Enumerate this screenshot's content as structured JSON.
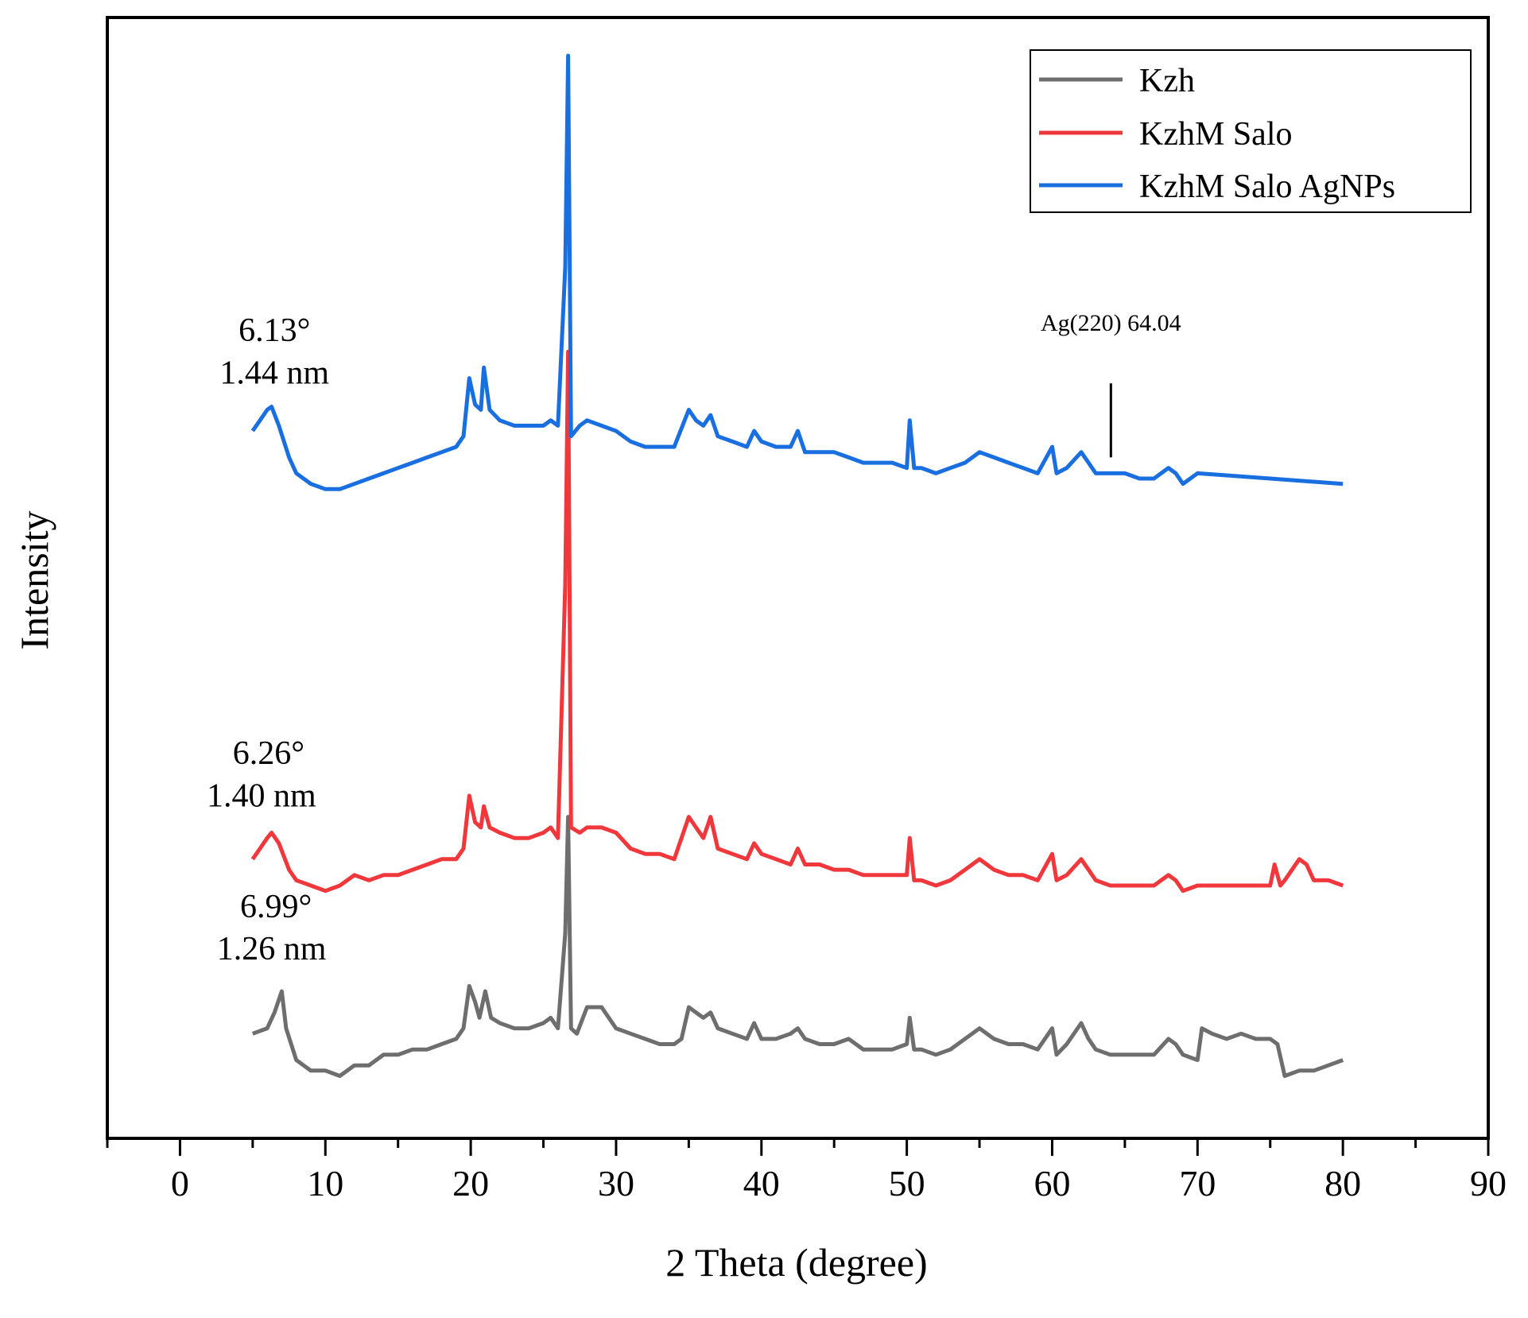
{
  "chart_data": {
    "type": "line",
    "title": "",
    "xlabel": "2 Theta (degree)",
    "ylabel": "Intensity",
    "xlim": [
      -5,
      90
    ],
    "ylim": [
      0,
      100
    ],
    "xticks": [
      0,
      10,
      20,
      30,
      40,
      50,
      60,
      70,
      80,
      90
    ],
    "xtick_labels": [
      "0",
      "10",
      "20",
      "30",
      "40",
      "50",
      "60",
      "70",
      "80",
      "90"
    ],
    "grid": false,
    "legend_position": "top-right",
    "series": [
      {
        "name": "Kzh",
        "color": "#6e6e6e",
        "points": [
          [
            5,
            7.5
          ],
          [
            6,
            8
          ],
          [
            6.5,
            9.5
          ],
          [
            7,
            11.5
          ],
          [
            7.3,
            8
          ],
          [
            8,
            5
          ],
          [
            9,
            4
          ],
          [
            10,
            4
          ],
          [
            11,
            3.5
          ],
          [
            12,
            4.5
          ],
          [
            13,
            4.5
          ],
          [
            14,
            5.5
          ],
          [
            15,
            5.5
          ],
          [
            16,
            6
          ],
          [
            17,
            6
          ],
          [
            18,
            6.5
          ],
          [
            19,
            7
          ],
          [
            19.5,
            8
          ],
          [
            19.9,
            12
          ],
          [
            20.3,
            10.5
          ],
          [
            20.6,
            9
          ],
          [
            21,
            11.5
          ],
          [
            21.4,
            9
          ],
          [
            22,
            8.5
          ],
          [
            23,
            8
          ],
          [
            24,
            8
          ],
          [
            25,
            8.5
          ],
          [
            25.5,
            9
          ],
          [
            26,
            8
          ],
          [
            26.5,
            17
          ],
          [
            26.7,
            28
          ],
          [
            26.9,
            8
          ],
          [
            27.3,
            7.5
          ],
          [
            28,
            10
          ],
          [
            29,
            10
          ],
          [
            29.5,
            9
          ],
          [
            30,
            8
          ],
          [
            31,
            7.5
          ],
          [
            32,
            7
          ],
          [
            33,
            6.5
          ],
          [
            34,
            6.5
          ],
          [
            34.5,
            7
          ],
          [
            35,
            10
          ],
          [
            35.5,
            9.5
          ],
          [
            36,
            9
          ],
          [
            36.5,
            9.5
          ],
          [
            37,
            8
          ],
          [
            38,
            7.5
          ],
          [
            39,
            7
          ],
          [
            39.5,
            8.5
          ],
          [
            40,
            7
          ],
          [
            41,
            7
          ],
          [
            42,
            7.5
          ],
          [
            42.5,
            8
          ],
          [
            43,
            7
          ],
          [
            44,
            6.5
          ],
          [
            45,
            6.5
          ],
          [
            46,
            7
          ],
          [
            47,
            6
          ],
          [
            48,
            6
          ],
          [
            49,
            6
          ],
          [
            50,
            6.5
          ],
          [
            50.2,
            9
          ],
          [
            50.5,
            6
          ],
          [
            51,
            6
          ],
          [
            52,
            5.5
          ],
          [
            53,
            6
          ],
          [
            54,
            7
          ],
          [
            55,
            8
          ],
          [
            56,
            7
          ],
          [
            57,
            6.5
          ],
          [
            58,
            6.5
          ],
          [
            59,
            6
          ],
          [
            60,
            8
          ],
          [
            60.3,
            5.5
          ],
          [
            61,
            6.5
          ],
          [
            62,
            8.5
          ],
          [
            62.5,
            7
          ],
          [
            63,
            6
          ],
          [
            64,
            5.5
          ],
          [
            65,
            5.5
          ],
          [
            66,
            5.5
          ],
          [
            67,
            5.5
          ],
          [
            68,
            7
          ],
          [
            68.5,
            6.5
          ],
          [
            69,
            5.5
          ],
          [
            70,
            5
          ],
          [
            70.3,
            8
          ],
          [
            71,
            7.5
          ],
          [
            72,
            7
          ],
          [
            73,
            7.5
          ],
          [
            74,
            7
          ],
          [
            75,
            7
          ],
          [
            75.5,
            6.5
          ],
          [
            76,
            3.5
          ],
          [
            77,
            4
          ],
          [
            78,
            4
          ],
          [
            79,
            4.5
          ],
          [
            80,
            5
          ]
        ]
      },
      {
        "name": "KzhM Salo",
        "color": "#f0373c",
        "points": [
          [
            5,
            24
          ],
          [
            5.5,
            25
          ],
          [
            6,
            26
          ],
          [
            6.3,
            26.5
          ],
          [
            6.8,
            25.5
          ],
          [
            7.5,
            23
          ],
          [
            8,
            22
          ],
          [
            9,
            21.5
          ],
          [
            10,
            21
          ],
          [
            11,
            21.5
          ],
          [
            12,
            22.5
          ],
          [
            13,
            22
          ],
          [
            14,
            22.5
          ],
          [
            15,
            22.5
          ],
          [
            16,
            23
          ],
          [
            17,
            23.5
          ],
          [
            18,
            24
          ],
          [
            19,
            24
          ],
          [
            19.5,
            25
          ],
          [
            19.9,
            30
          ],
          [
            20.3,
            27.5
          ],
          [
            20.7,
            27
          ],
          [
            20.9,
            29
          ],
          [
            21.3,
            27
          ],
          [
            22,
            26.5
          ],
          [
            23,
            26
          ],
          [
            24,
            26
          ],
          [
            25,
            26.5
          ],
          [
            25.5,
            27
          ],
          [
            26,
            26
          ],
          [
            26.5,
            50
          ],
          [
            26.7,
            72
          ],
          [
            26.9,
            27
          ],
          [
            27.5,
            26.5
          ],
          [
            28,
            27
          ],
          [
            29,
            27
          ],
          [
            30,
            26.5
          ],
          [
            31,
            25
          ],
          [
            32,
            24.5
          ],
          [
            33,
            24.5
          ],
          [
            34,
            24
          ],
          [
            35,
            28
          ],
          [
            35.5,
            27
          ],
          [
            36,
            26
          ],
          [
            36.5,
            28
          ],
          [
            37,
            25
          ],
          [
            38,
            24.5
          ],
          [
            39,
            24
          ],
          [
            39.5,
            25.5
          ],
          [
            40,
            24.5
          ],
          [
            41,
            24
          ],
          [
            42,
            23.5
          ],
          [
            42.5,
            25
          ],
          [
            43,
            23.5
          ],
          [
            44,
            23.5
          ],
          [
            45,
            23
          ],
          [
            46,
            23
          ],
          [
            47,
            22.5
          ],
          [
            48,
            22.5
          ],
          [
            49,
            22.5
          ],
          [
            50,
            22.5
          ],
          [
            50.2,
            26
          ],
          [
            50.5,
            22
          ],
          [
            51,
            22
          ],
          [
            52,
            21.5
          ],
          [
            53,
            22
          ],
          [
            54,
            23
          ],
          [
            55,
            24
          ],
          [
            56,
            23
          ],
          [
            57,
            22.5
          ],
          [
            58,
            22.5
          ],
          [
            59,
            22
          ],
          [
            60,
            24.5
          ],
          [
            60.3,
            22
          ],
          [
            61,
            22.5
          ],
          [
            62,
            24
          ],
          [
            62.5,
            23
          ],
          [
            63,
            22
          ],
          [
            64,
            21.5
          ],
          [
            65,
            21.5
          ],
          [
            66,
            21.5
          ],
          [
            67,
            21.5
          ],
          [
            68,
            22.5
          ],
          [
            68.5,
            22
          ],
          [
            69,
            21
          ],
          [
            70,
            21.5
          ],
          [
            75,
            21.5
          ],
          [
            75.3,
            23.5
          ],
          [
            75.7,
            21.5
          ],
          [
            76,
            22
          ],
          [
            77,
            24
          ],
          [
            77.5,
            23.5
          ],
          [
            78,
            22
          ],
          [
            79,
            22
          ],
          [
            80,
            21.5
          ]
        ]
      },
      {
        "name": "KzhM Salo AgNPs",
        "color": "#1a6fe0",
        "points": [
          [
            5,
            64.5
          ],
          [
            5.5,
            65.5
          ],
          [
            6,
            66.5
          ],
          [
            6.3,
            66.8
          ],
          [
            6.8,
            65
          ],
          [
            7.5,
            62
          ],
          [
            8,
            60.5
          ],
          [
            9,
            59.5
          ],
          [
            10,
            59
          ],
          [
            11,
            59
          ],
          [
            12,
            59.5
          ],
          [
            13,
            60
          ],
          [
            14,
            60.5
          ],
          [
            15,
            61
          ],
          [
            16,
            61.5
          ],
          [
            17,
            62
          ],
          [
            18,
            62.5
          ],
          [
            19,
            63
          ],
          [
            19.5,
            64
          ],
          [
            19.9,
            69.5
          ],
          [
            20.3,
            67
          ],
          [
            20.7,
            66.5
          ],
          [
            20.9,
            70.5
          ],
          [
            21.3,
            66.5
          ],
          [
            22,
            65.5
          ],
          [
            23,
            65
          ],
          [
            24,
            65
          ],
          [
            25,
            65
          ],
          [
            25.5,
            65.5
          ],
          [
            26,
            65
          ],
          [
            26.5,
            80
          ],
          [
            26.7,
            100
          ],
          [
            26.9,
            64
          ],
          [
            27.5,
            65
          ],
          [
            28,
            65.5
          ],
          [
            29,
            65
          ],
          [
            30,
            64.5
          ],
          [
            31,
            63.5
          ],
          [
            32,
            63
          ],
          [
            33,
            63
          ],
          [
            34,
            63
          ],
          [
            35,
            66.5
          ],
          [
            35.5,
            65.5
          ],
          [
            36,
            65
          ],
          [
            36.5,
            66
          ],
          [
            37,
            64
          ],
          [
            38,
            63.5
          ],
          [
            39,
            63
          ],
          [
            39.5,
            64.5
          ],
          [
            40,
            63.5
          ],
          [
            41,
            63
          ],
          [
            42,
            63
          ],
          [
            42.5,
            64.5
          ],
          [
            43,
            62.5
          ],
          [
            44,
            62.5
          ],
          [
            45,
            62.5
          ],
          [
            46,
            62
          ],
          [
            47,
            61.5
          ],
          [
            48,
            61.5
          ],
          [
            49,
            61.5
          ],
          [
            50,
            61
          ],
          [
            50.2,
            65.5
          ],
          [
            50.5,
            61
          ],
          [
            51,
            61
          ],
          [
            52,
            60.5
          ],
          [
            53,
            61
          ],
          [
            54,
            61.5
          ],
          [
            55,
            62.5
          ],
          [
            56,
            62
          ],
          [
            57,
            61.5
          ],
          [
            58,
            61
          ],
          [
            59,
            60.5
          ],
          [
            60,
            63
          ],
          [
            60.3,
            60.5
          ],
          [
            61,
            61
          ],
          [
            62,
            62.5
          ],
          [
            62.5,
            61.5
          ],
          [
            63,
            60.5
          ],
          [
            64,
            60.5
          ],
          [
            65,
            60.5
          ],
          [
            66,
            60
          ],
          [
            67,
            60
          ],
          [
            68,
            61
          ],
          [
            68.5,
            60.5
          ],
          [
            69,
            59.5
          ],
          [
            70,
            60.5
          ],
          [
            75,
            60
          ],
          [
            80,
            59.5
          ]
        ]
      }
    ],
    "annotations": [
      {
        "id": "ann-blue-angle",
        "text": "6.13°",
        "x": 6.5,
        "y": 73
      },
      {
        "id": "ann-blue-d",
        "text": "1.44 nm",
        "x": 6.5,
        "y": 69
      },
      {
        "id": "ann-red-angle",
        "text": "6.26°",
        "x": 6.1,
        "y": 33
      },
      {
        "id": "ann-red-d",
        "text": "1.40 nm",
        "x": 5.6,
        "y": 29
      },
      {
        "id": "ann-gray-angle",
        "text": "6.99°",
        "x": 6.6,
        "y": 18.5
      },
      {
        "id": "ann-gray-d",
        "text": "1.26 nm",
        "x": 6.3,
        "y": 14.5
      },
      {
        "id": "ann-ag",
        "text": "Ag(220) 64.04",
        "x": 64.04,
        "y": 74,
        "marker_from": 69,
        "marker_to": 62
      }
    ]
  }
}
